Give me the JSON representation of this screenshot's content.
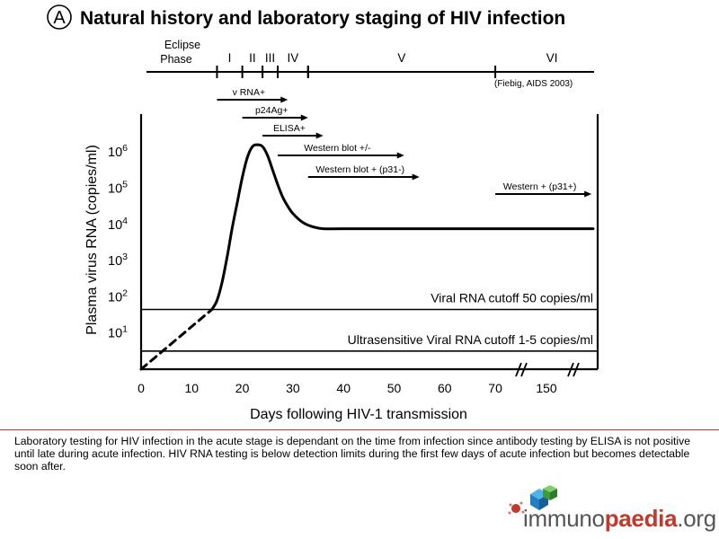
{
  "panel_letter": "A",
  "chart_data": {
    "type": "line",
    "title": "Natural history and laboratory staging of HIV infection",
    "xlabel": "Days following HIV-1 transmission",
    "ylabel": "Plasma virus RNA (copies/ml)",
    "yscale": "log",
    "ylim": [
      0,
      7
    ],
    "x_ticks": [
      "0",
      "10",
      "20",
      "30",
      "40",
      "50",
      "60",
      "70",
      "150"
    ],
    "y_ticks": [
      {
        "base": "10",
        "exp": "1",
        "value": 1
      },
      {
        "base": "10",
        "exp": "2",
        "value": 2
      },
      {
        "base": "10",
        "exp": "3",
        "value": 3
      },
      {
        "base": "10",
        "exp": "4",
        "value": 4
      },
      {
        "base": "10",
        "exp": "5",
        "value": 5
      },
      {
        "base": "10",
        "exp": "6",
        "value": 6
      }
    ],
    "series": [
      {
        "style": "solid",
        "x": [
          14,
          15,
          16,
          17,
          18,
          19,
          20,
          21,
          22,
          23,
          24,
          25,
          26,
          27,
          28,
          29,
          30,
          32,
          34,
          36,
          40,
          50,
          60,
          70,
          90
        ],
        "y": [
          1.65,
          1.9,
          2.4,
          3.1,
          3.9,
          4.6,
          5.3,
          5.85,
          6.15,
          6.2,
          6.15,
          5.9,
          5.5,
          5.1,
          4.75,
          4.5,
          4.3,
          4.05,
          3.93,
          3.88,
          3.88,
          3.88,
          3.88,
          3.88,
          3.88
        ]
      },
      {
        "style": "dashed",
        "x": [
          0,
          14
        ],
        "y": [
          0,
          1.65
        ]
      }
    ],
    "reference_lines": [
      {
        "y": 1.65,
        "label": "Viral RNA cutoff 50 copies/ml"
      },
      {
        "y": 0.5,
        "label": "Ultrasensitive Viral RNA cutoff 1-5 copies/ml"
      }
    ],
    "stages": {
      "label_eclipse": "Eclipse Phase",
      "items": [
        {
          "label": "I",
          "start": 15,
          "end": 20
        },
        {
          "label": "II",
          "start": 20,
          "end": 24
        },
        {
          "label": "III",
          "start": 24,
          "end": 27
        },
        {
          "label": "IV",
          "start": 27,
          "end": 33
        },
        {
          "label": "V",
          "start": 33,
          "end": 70
        },
        {
          "label": "VI",
          "start": 70,
          "end": 90
        }
      ],
      "source": "(Fiebig, AIDS 2003)"
    },
    "assays": [
      {
        "label": "v RNA+",
        "start": 15
      },
      {
        "label": "p24Ag+",
        "start": 20
      },
      {
        "label": "ELISA+",
        "start": 24
      },
      {
        "label": "Western blot +/-",
        "start": 27
      },
      {
        "label": "Western blot + (p31-)",
        "start": 33
      },
      {
        "label": "Western + (p31+)",
        "start": 70
      }
    ]
  },
  "caption": "Laboratory testing for HIV infection in the acute stage is dependant on the time from infection since antibody testing by ELISA is not positive until late during acute infection. HIV RNA testing is below detection limits during the first few days of acute infection but becomes detectable soon after.",
  "logo": {
    "part1": "immuno",
    "part2": "paedia",
    "part3": ".org"
  }
}
